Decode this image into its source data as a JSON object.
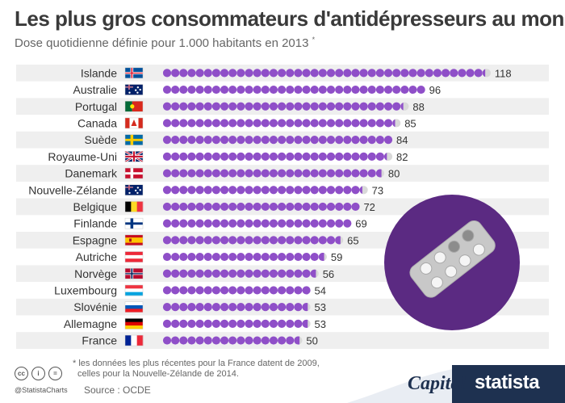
{
  "chart_data": {
    "type": "bar",
    "title": "Les plus gros consommateurs d'antidépresseurs au monde",
    "subtitle": "Dose quotidienne définie pour 1.000 habitants en 2013",
    "subtitle_mark": "*",
    "unit_per_dot": 3,
    "categories": [
      "Islande",
      "Australie",
      "Portugal",
      "Canada",
      "Suède",
      "Royaume-Uni",
      "Danemark",
      "Nouvelle-Zélande",
      "Belgique",
      "Finlande",
      "Espagne",
      "Autriche",
      "Norvège",
      "Luxembourg",
      "Slovénie",
      "Allemagne",
      "France"
    ],
    "values": [
      118,
      96,
      88,
      85,
      84,
      82,
      80,
      73,
      72,
      69,
      65,
      59,
      56,
      54,
      53,
      53,
      50
    ],
    "value_labels": [
      "118",
      "96",
      "88",
      "85",
      "84",
      "82",
      "80",
      "73",
      "72",
      "69",
      "65",
      "59",
      "56",
      "54",
      "53",
      "53",
      "50"
    ]
  },
  "flags": [
    {
      "type": "nordic",
      "bg": "#02529c",
      "cross": "#ffffff",
      "inner": "#dc1e35"
    },
    {
      "type": "austral",
      "bg": "#012169"
    },
    {
      "type": "portugal"
    },
    {
      "type": "canada"
    },
    {
      "type": "nordic",
      "bg": "#006aa7",
      "cross": "#fecc00"
    },
    {
      "type": "uk"
    },
    {
      "type": "nordic",
      "bg": "#c8102e",
      "cross": "#ffffff"
    },
    {
      "type": "austral",
      "bg": "#012169"
    },
    {
      "type": "vtri",
      "colors": [
        "#000000",
        "#fdda24",
        "#ef3340"
      ]
    },
    {
      "type": "nordic",
      "bg": "#ffffff",
      "cross": "#003580"
    },
    {
      "type": "spain"
    },
    {
      "type": "htri",
      "colors": [
        "#ed2939",
        "#ffffff",
        "#ed2939"
      ]
    },
    {
      "type": "nordic",
      "bg": "#ba0c2f",
      "cross": "#ffffff",
      "inner": "#00205b"
    },
    {
      "type": "htri",
      "colors": [
        "#ef3340",
        "#ffffff",
        "#00a3e0"
      ]
    },
    {
      "type": "htri",
      "colors": [
        "#ffffff",
        "#0057b8",
        "#ed1c24"
      ]
    },
    {
      "type": "htri",
      "colors": [
        "#000000",
        "#dd0000",
        "#ffce00"
      ]
    },
    {
      "type": "vtri",
      "colors": [
        "#002395",
        "#ffffff",
        "#ed2939"
      ]
    }
  ],
  "colors": {
    "dot": "#8f4fc8",
    "dot_partial_bg": "#d9d9d9",
    "stripe": "#efefef",
    "pill_circle": "#5b2a82",
    "pill_blister": "#c8c8c8"
  },
  "footnote_line1": "* les données les plus récentes pour la France datent de 2009,",
  "footnote_line2": "celles pour la Nouvelle-Zélande de 2014.",
  "source": "Source : OCDE",
  "handle": "@StatistaCharts",
  "logo_capital": "Capital",
  "logo_statista": "statista"
}
